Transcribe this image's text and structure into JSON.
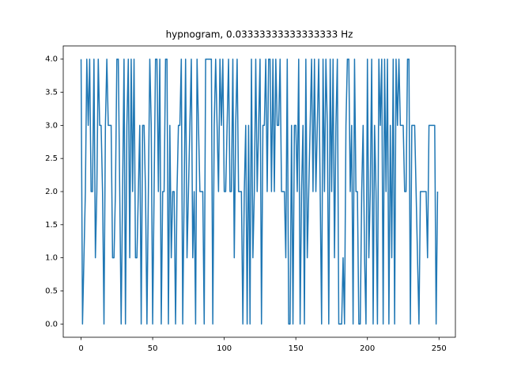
{
  "chart_data": {
    "type": "line",
    "title": "hypnogram, 0.03333333333333333 Hz",
    "x": [
      0,
      1,
      2,
      3,
      4,
      5,
      6,
      7,
      8,
      9,
      10,
      11,
      12,
      13,
      14,
      15,
      16,
      17,
      18,
      19,
      20,
      21,
      22,
      23,
      24,
      25,
      26,
      27,
      28,
      29,
      30,
      31,
      32,
      33,
      34,
      35,
      36,
      37,
      38,
      39,
      40,
      41,
      42,
      43,
      44,
      45,
      46,
      47,
      48,
      49,
      50,
      51,
      52,
      53,
      54,
      55,
      56,
      57,
      58,
      59,
      60,
      61,
      62,
      63,
      64,
      65,
      66,
      67,
      68,
      69,
      70,
      71,
      72,
      73,
      74,
      75,
      76,
      77,
      78,
      79,
      80,
      81,
      82,
      83,
      84,
      85,
      86,
      87,
      88,
      89,
      90,
      91,
      92,
      93,
      94,
      95,
      96,
      97,
      98,
      99,
      100,
      101,
      102,
      103,
      104,
      105,
      106,
      107,
      108,
      109,
      110,
      111,
      112,
      113,
      114,
      115,
      116,
      117,
      118,
      119,
      120,
      121,
      122,
      123,
      124,
      125,
      126,
      127,
      128,
      129,
      130,
      131,
      132,
      133,
      134,
      135,
      136,
      137,
      138,
      139,
      140,
      141,
      142,
      143,
      144,
      145,
      146,
      147,
      148,
      149,
      150,
      151,
      152,
      153,
      154,
      155,
      156,
      157,
      158,
      159,
      160,
      161,
      162,
      163,
      164,
      165,
      166,
      167,
      168,
      169,
      170,
      171,
      172,
      173,
      174,
      175,
      176,
      177,
      178,
      179,
      180,
      181,
      182,
      183,
      184,
      185,
      186,
      187,
      188,
      189,
      190,
      191,
      192,
      193,
      194,
      195,
      196,
      197,
      198,
      199,
      200,
      201,
      202,
      203,
      204,
      205,
      206,
      207,
      208,
      209,
      210,
      211,
      212,
      213,
      214,
      215,
      216,
      217,
      218,
      219,
      220,
      221,
      222,
      223,
      224,
      225,
      226,
      227,
      228,
      229,
      230,
      231,
      232,
      233,
      234,
      235,
      236,
      237,
      238,
      239,
      240,
      241,
      242,
      243,
      244,
      245,
      246,
      247,
      248,
      249
    ],
    "series": [
      {
        "color": "#1f77b4",
        "values": [
          4,
          0,
          1,
          2,
          4,
          3,
          4,
          2,
          2,
          4,
          1,
          2,
          4,
          3,
          3,
          2,
          0,
          3,
          4,
          3,
          3,
          3,
          1,
          1,
          2,
          4,
          4,
          2,
          0,
          2,
          4,
          0,
          3,
          4,
          1,
          4,
          2,
          4,
          1,
          1,
          2,
          3,
          0,
          3,
          3,
          2,
          0,
          2,
          4,
          3,
          0,
          2,
          4,
          4,
          2,
          4,
          0,
          2,
          2,
          4,
          4,
          0,
          3,
          1,
          2,
          2,
          0,
          2,
          3,
          3,
          4,
          0,
          2,
          4,
          1,
          2,
          3,
          4,
          1,
          2,
          0,
          4,
          3,
          2,
          2,
          2,
          0,
          4,
          4,
          4,
          4,
          4,
          0,
          3,
          4,
          3,
          2,
          4,
          3,
          4,
          2,
          2,
          3,
          4,
          2,
          2,
          4,
          1,
          3,
          4,
          2,
          2,
          2,
          0,
          2,
          3,
          0,
          3,
          0,
          4,
          1,
          2,
          4,
          2,
          3,
          4,
          0,
          3,
          3,
          4,
          2,
          4,
          4,
          2,
          4,
          2,
          4,
          3,
          3,
          4,
          2,
          2,
          2,
          1,
          4,
          0,
          0,
          3,
          0,
          3,
          3,
          2,
          4,
          0,
          2,
          3,
          0,
          4,
          1,
          2,
          3,
          4,
          2,
          4,
          2,
          3,
          4,
          2,
          0,
          4,
          2,
          4,
          3,
          0,
          4,
          2,
          4,
          1,
          3,
          4,
          0,
          0,
          0,
          1,
          0,
          3,
          4,
          4,
          2,
          3,
          0,
          4,
          2,
          2,
          0,
          0,
          2,
          3,
          1,
          0,
          4,
          1,
          2,
          4,
          0,
          3,
          2,
          0,
          4,
          3,
          4,
          0,
          4,
          2,
          4,
          0,
          3,
          1,
          4,
          0,
          4,
          3,
          4,
          3,
          3,
          3,
          2,
          2,
          4,
          4,
          0,
          3,
          3,
          3,
          2,
          1,
          0,
          2,
          2,
          2,
          2,
          2,
          1,
          3,
          3,
          3,
          3,
          3,
          0,
          2
        ]
      }
    ],
    "xlim": [
      -12.45,
      261.45
    ],
    "xticks": [
      0,
      50,
      100,
      150,
      200,
      250
    ],
    "ylim": [
      -0.2,
      4.2
    ],
    "yticks": [
      {
        "value": 0,
        "label": "0.0"
      },
      0.5,
      {
        "value": 1,
        "label": "1.0"
      },
      1.5,
      {
        "value": 2,
        "label": "2.0"
      },
      2.5,
      {
        "value": 3,
        "label": "3.0"
      },
      3.5,
      {
        "value": 4,
        "label": "4.0"
      }
    ]
  }
}
